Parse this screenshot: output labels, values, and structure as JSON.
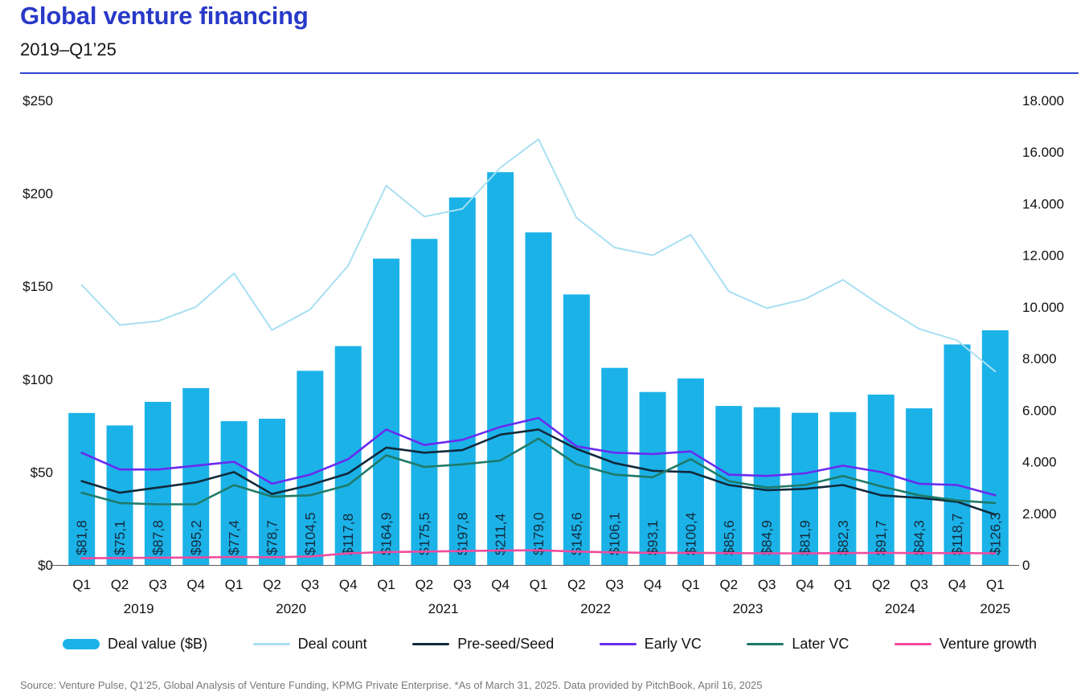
{
  "header": {
    "title": "Global venture financing",
    "subtitle": "2019–Q1’25"
  },
  "footer": {
    "source": "Source: Venture Pulse, Q1’25, Global Analysis of Venture Funding, KPMG Private Enterprise. *As of March 31, 2025. Data provided by PitchBook, April 16, 2025"
  },
  "colors": {
    "title_blue": "#2839C7",
    "rule_blue": "#2F45D3",
    "bar": "#1BB2E8",
    "bar_label": "#142B3D",
    "deal_count": "#A8DFF3",
    "pre_seed": "#102A3B",
    "early_vc": "#692BF0",
    "later_vc": "#1F7A68",
    "venture_growth": "#F24A9E",
    "axis_text": "#111111",
    "axis_line": "#58595B"
  },
  "chart_data": {
    "type": "bar+line combo (bars on left $B axis, lines on right deal-count axis)",
    "categories": [
      "Q1",
      "Q2",
      "Q3",
      "Q4",
      "Q1",
      "Q2",
      "Q3",
      "Q4",
      "Q1",
      "Q2",
      "Q3",
      "Q4",
      "Q1",
      "Q2",
      "Q3",
      "Q4",
      "Q1",
      "Q2",
      "Q3",
      "Q4",
      "Q1",
      "Q2",
      "Q3",
      "Q4",
      "Q1"
    ],
    "year_groups": [
      {
        "label": "2019",
        "quarters": 4
      },
      {
        "label": "2020",
        "quarters": 4
      },
      {
        "label": "2021",
        "quarters": 4
      },
      {
        "label": "2022",
        "quarters": 4
      },
      {
        "label": "2023",
        "quarters": 4
      },
      {
        "label": "2024",
        "quarters": 4
      },
      {
        "label": "2025",
        "quarters": 1
      }
    ],
    "left_axis": {
      "ticks": [
        "$250",
        "$200",
        "$150",
        "$100",
        "$50",
        "$0"
      ],
      "min": 0,
      "max": 250
    },
    "right_axis": {
      "ticks": [
        "18.000",
        "16.000",
        "14.000",
        "12.000",
        "10.000",
        "8.000",
        "6.000",
        "4.000",
        "2.000",
        "0"
      ],
      "min": 0,
      "max": 18000
    },
    "bars": {
      "name": "Deal value ($B)",
      "axis": "left",
      "values": [
        81.8,
        75.1,
        87.8,
        95.2,
        77.4,
        78.7,
        104.5,
        117.8,
        164.9,
        175.5,
        197.8,
        211.4,
        179.0,
        145.6,
        106.1,
        93.1,
        100.4,
        85.6,
        84.9,
        81.9,
        82.3,
        91.7,
        84.3,
        118.7,
        126.3
      ],
      "labels": [
        "$81,8",
        "$75,1",
        "$87,8",
        "$95,2",
        "$77,4",
        "$78,7",
        "$104,5",
        "$117,8",
        "$164,9",
        "$175,5",
        "$197,8",
        "$211,4",
        "$179,0",
        "$145,6",
        "$106,1",
        "$93,1",
        "$100,4",
        "$85,6",
        "$84,9",
        "$81,9",
        "$82,3",
        "$91,7",
        "$84,3",
        "$118,7",
        "$126,3"
      ]
    },
    "series": [
      {
        "name": "Deal count",
        "axis": "right",
        "color_key": "deal_count",
        "width": 2,
        "values": [
          10850,
          9300,
          9450,
          10000,
          11300,
          9100,
          9900,
          11600,
          14700,
          13500,
          13800,
          15400,
          16500,
          13450,
          12300,
          12000,
          12800,
          10600,
          9950,
          10300,
          11050,
          10050,
          9150,
          8700,
          7500
        ]
      },
      {
        "name": "Pre-seed/Seed",
        "axis": "right",
        "color_key": "pre_seed",
        "width": 2.6,
        "values": [
          3250,
          2800,
          3000,
          3200,
          3600,
          2750,
          3100,
          3550,
          4550,
          4350,
          4450,
          5050,
          5250,
          4500,
          3950,
          3650,
          3600,
          3100,
          2900,
          2950,
          3100,
          2700,
          2600,
          2450,
          1950
        ]
      },
      {
        "name": "Early VC",
        "axis": "right",
        "color_key": "early_vc",
        "width": 2.6,
        "values": [
          4350,
          3700,
          3700,
          3850,
          4000,
          3150,
          3500,
          4100,
          5250,
          4650,
          4850,
          5350,
          5700,
          4600,
          4350,
          4300,
          4400,
          3500,
          3450,
          3550,
          3850,
          3600,
          3150,
          3100,
          2700
        ]
      },
      {
        "name": "Later VC",
        "axis": "right",
        "color_key": "later_vc",
        "width": 2.6,
        "values": [
          2800,
          2400,
          2350,
          2350,
          3100,
          2650,
          2700,
          3100,
          4250,
          3800,
          3900,
          4050,
          4900,
          3900,
          3500,
          3400,
          4100,
          3250,
          3000,
          3100,
          3450,
          3050,
          2700,
          2500,
          2400
        ]
      },
      {
        "name": "Venture growth",
        "axis": "right",
        "color_key": "venture_growth",
        "width": 2.6,
        "values": [
          260,
          270,
          280,
          290,
          310,
          300,
          330,
          450,
          500,
          520,
          540,
          560,
          570,
          520,
          490,
          470,
          470,
          460,
          450,
          450,
          460,
          470,
          460,
          460,
          450
        ]
      }
    ],
    "legend": [
      {
        "label": "Deal value ($B)",
        "swatch": "bar",
        "color_key": "bar"
      },
      {
        "label": "Deal count",
        "swatch": "line",
        "color_key": "deal_count"
      },
      {
        "label": "Pre-seed/Seed",
        "swatch": "line",
        "color_key": "pre_seed"
      },
      {
        "label": "Early VC",
        "swatch": "line",
        "color_key": "early_vc"
      },
      {
        "label": "Later VC",
        "swatch": "line",
        "color_key": "later_vc"
      },
      {
        "label": "Venture growth",
        "swatch": "line",
        "color_key": "venture_growth"
      }
    ]
  }
}
